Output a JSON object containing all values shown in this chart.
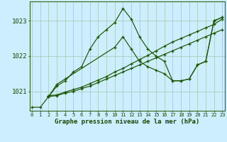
{
  "title": "Graphe pression niveau de la mer (hPa)",
  "bg_color": "#cceeff",
  "grid_color": "#aaccbb",
  "line_color": "#1a5500",
  "yticks": [
    1021,
    1022,
    1023
  ],
  "xticks": [
    0,
    1,
    2,
    3,
    4,
    5,
    6,
    7,
    8,
    9,
    10,
    11,
    12,
    13,
    14,
    15,
    16,
    17,
    18,
    19,
    20,
    21,
    22,
    23
  ],
  "ylim": [
    1020.45,
    1023.55
  ],
  "xlim": [
    -0.3,
    23.3
  ],
  "series1_x": [
    0,
    1,
    2,
    3,
    4,
    5,
    6,
    7,
    8,
    9,
    10,
    11,
    12,
    13,
    14,
    15,
    16,
    17,
    18,
    19,
    20,
    21,
    22,
    23
  ],
  "series1_y": [
    1020.55,
    1020.55,
    1020.85,
    1021.15,
    1021.3,
    1021.55,
    1021.7,
    1022.2,
    1022.55,
    1022.75,
    1022.95,
    1023.35,
    1023.05,
    1022.55,
    1022.2,
    1022.0,
    1021.85,
    1021.3,
    1021.3,
    1021.35,
    1021.75,
    1021.85,
    1023.0,
    1023.1
  ],
  "series2_x": [
    2,
    3,
    4,
    5,
    6,
    7,
    8,
    9,
    10,
    11,
    12,
    13,
    14,
    15,
    16,
    17,
    18,
    19,
    20,
    21,
    22,
    23
  ],
  "series2_y": [
    1020.85,
    1020.88,
    1020.95,
    1021.0,
    1021.08,
    1021.15,
    1021.25,
    1021.35,
    1021.45,
    1021.55,
    1021.65,
    1021.75,
    1021.85,
    1021.95,
    1022.05,
    1022.15,
    1022.25,
    1022.35,
    1022.45,
    1022.55,
    1022.65,
    1022.75
  ],
  "series3_x": [
    2,
    3,
    4,
    5,
    6,
    7,
    8,
    9,
    10,
    11,
    12,
    13,
    14,
    15,
    16,
    17,
    18,
    19,
    20,
    21,
    22,
    23
  ],
  "series3_y": [
    1020.88,
    1020.9,
    1020.98,
    1021.05,
    1021.12,
    1021.22,
    1021.32,
    1021.42,
    1021.55,
    1021.65,
    1021.78,
    1021.9,
    1022.02,
    1022.15,
    1022.28,
    1022.4,
    1022.5,
    1022.6,
    1022.7,
    1022.8,
    1022.9,
    1023.05
  ],
  "series4_x": [
    2,
    3,
    4,
    10,
    11,
    12,
    13,
    14,
    15,
    16,
    17,
    18,
    19,
    20,
    21,
    22,
    23
  ],
  "series4_y": [
    1020.85,
    1021.2,
    1021.35,
    1022.25,
    1022.55,
    1022.2,
    1021.85,
    1021.7,
    1021.6,
    1021.5,
    1021.3,
    1021.3,
    1021.35,
    1021.75,
    1021.85,
    1023.0,
    1023.1
  ]
}
